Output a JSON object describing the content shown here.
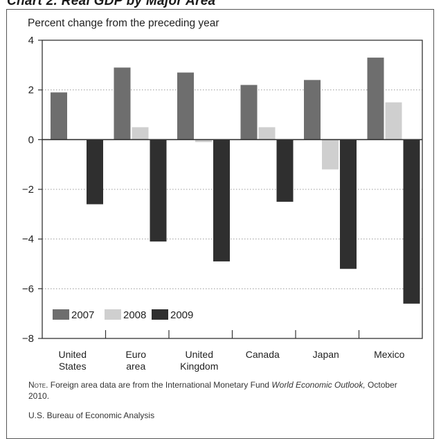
{
  "page_title": "Chart 2. Real GDP by Major Area",
  "note": {
    "lead": "Note.",
    "text_before": " Foreign area data are from the International Monetary Fund ",
    "italic": "World Economic Outlook,",
    "text_after": " October 2010."
  },
  "source": "U.S. Bureau of Economic Analysis",
  "colors": {
    "s2007": "#6e6e6e",
    "s2008": "#cfcfcf",
    "s2009": "#2f2f2f",
    "grid": "#9a9a9a",
    "axis": "#333333"
  },
  "chart_data": {
    "type": "bar",
    "title": "",
    "subtitle": "Percent change from the preceding year",
    "xlabel": "",
    "ylabel": "",
    "ylim": [
      -8,
      4
    ],
    "yticks": [
      4,
      2,
      0,
      -2,
      -4,
      -6,
      -8
    ],
    "ytick_labels": [
      "4",
      "2",
      "0",
      "−2",
      "−4",
      "−6",
      "−8"
    ],
    "grid": true,
    "legend": "lower-left",
    "categories": [
      [
        "United",
        "States"
      ],
      [
        "Euro",
        "area"
      ],
      [
        "United",
        "Kingdom"
      ],
      [
        "Canada"
      ],
      [
        "Japan"
      ],
      [
        "Mexico"
      ]
    ],
    "series": [
      {
        "name": "2007",
        "values": [
          1.9,
          2.9,
          2.7,
          2.2,
          2.4,
          3.3
        ]
      },
      {
        "name": "2008",
        "values": [
          0.0,
          0.5,
          -0.1,
          0.5,
          -1.2,
          1.5
        ]
      },
      {
        "name": "2009",
        "values": [
          -2.6,
          -4.1,
          -4.9,
          -2.5,
          -5.2,
          -6.6
        ]
      }
    ]
  }
}
